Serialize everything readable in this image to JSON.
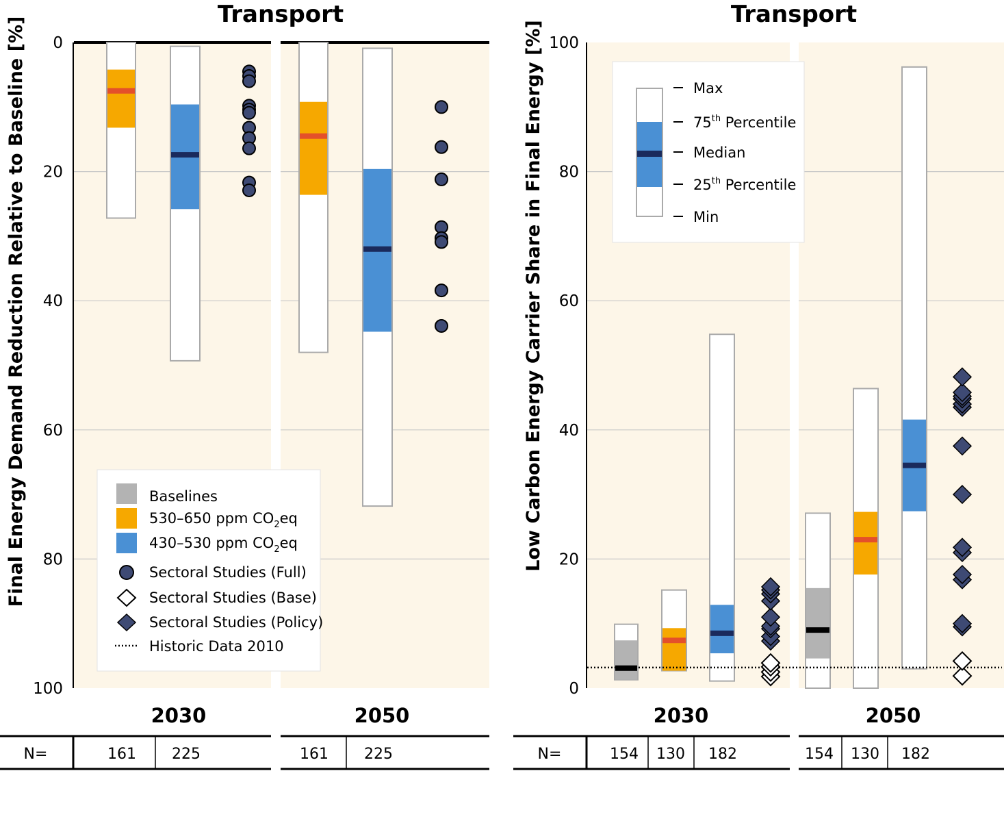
{
  "colors": {
    "panel_bg": "#fdf6e8",
    "white_box": "#ffffff",
    "box_border": "#aaaaaa",
    "baseline": "#b3b3b3",
    "orange": "#f6a800",
    "blue": "#4a90d4",
    "median_orange": "#e4502a",
    "median_blue": "#1a2a5c",
    "median_base": "#000000",
    "marker": "#3e4a74",
    "grid": "#c8c8c8"
  },
  "legend": {
    "baselines": "Baselines",
    "orange_pre": "530–650 ppm CO",
    "orange_sub": "2",
    "orange_post": "eq",
    "blue_pre": "430–530 ppm CO",
    "blue_sub": "2",
    "blue_post": "eq",
    "full": "Sectoral Studies (Full)",
    "base": "Sectoral Studies (Base)",
    "policy": "Sectoral Studies (Policy)",
    "historic": "Historic Data 2010"
  },
  "key_legend": {
    "max": "Max",
    "p75_pre": "75",
    "p75_sup": "th",
    "p75_post": " Percentile",
    "median": "Median",
    "p25_pre": "25",
    "p25_sup": "th",
    "p25_post": " Percentile",
    "min": "Min"
  },
  "n_label": "N=",
  "chart_data": [
    {
      "type": "box",
      "title": "Transport",
      "ylabel": "Final Energy Demand Reduction Relative to Baseline [%]",
      "y_inverted": true,
      "ylim": [
        0,
        100
      ],
      "yticks": [
        "0",
        "20",
        "40",
        "60",
        "80",
        "100"
      ],
      "grid": true,
      "legend_position": "bottom-left",
      "groups": [
        {
          "year": "2030",
          "n": [
            "161",
            "225"
          ],
          "boxes": [
            {
              "category": "530–650 ppm CO2eq",
              "color": "orange",
              "min": 0,
              "p25": 4.2,
              "median": 7.5,
              "p75": 13.2,
              "max": 27.2
            },
            {
              "category": "430–530 ppm CO2eq",
              "color": "blue",
              "min": 0.6,
              "p25": 9.6,
              "median": 17.4,
              "p75": 25.8,
              "max": 49.3
            }
          ],
          "sectoral_full": [
            4.5,
            5.2,
            6.0,
            9.8,
            10.4,
            10.9,
            13.2,
            14.8,
            16.4,
            21.7,
            22.9
          ]
        },
        {
          "year": "2050",
          "n": [
            "161",
            "225"
          ],
          "boxes": [
            {
              "category": "530–650 ppm CO2eq",
              "color": "orange",
              "min": 0,
              "p25": 9.2,
              "median": 14.5,
              "p75": 23.6,
              "max": 48.0
            },
            {
              "category": "430–530 ppm CO2eq",
              "color": "blue",
              "min": 0.9,
              "p25": 19.6,
              "median": 32.0,
              "p75": 44.8,
              "max": 71.8
            }
          ],
          "sectoral_full": [
            10.0,
            16.2,
            21.2,
            28.6,
            30.3,
            30.9,
            38.4,
            43.9
          ]
        }
      ]
    },
    {
      "type": "box",
      "title": "Transport",
      "ylabel": "Low Carbon Energy Carrier Share in Final Energy [%]",
      "y_inverted": false,
      "ylim": [
        0,
        100
      ],
      "yticks": [
        "0",
        "20",
        "40",
        "60",
        "80",
        "100"
      ],
      "grid": true,
      "historic_2010": 3.2,
      "legend_position": "top-left",
      "groups": [
        {
          "year": "2030",
          "n": [
            "154",
            "130",
            "182"
          ],
          "boxes": [
            {
              "category": "Baselines",
              "color": "baseline",
              "min": 1.3,
              "p25": 1.3,
              "median": 3.1,
              "p75": 7.4,
              "max": 9.9
            },
            {
              "category": "530–650 ppm CO2eq",
              "color": "orange",
              "min": 2.7,
              "p25": 2.7,
              "median": 7.4,
              "p75": 9.3,
              "max": 15.2
            },
            {
              "category": "430–530 ppm CO2eq",
              "color": "blue",
              "min": 1.1,
              "p25": 5.4,
              "median": 8.5,
              "p75": 12.9,
              "max": 54.8
            }
          ],
          "sectoral_policy": [
            7.3,
            8.0,
            9.2,
            9.6,
            11.0,
            13.5,
            14.6,
            15.2,
            15.7
          ],
          "sectoral_base": [
            1.8,
            2.5,
            3.3,
            3.9
          ]
        },
        {
          "year": "2050",
          "n": [
            "154",
            "130",
            "182"
          ],
          "boxes": [
            {
              "category": "Baselines",
              "color": "baseline",
              "min": 0,
              "p25": 4.6,
              "median": 9.0,
              "p75": 15.5,
              "max": 27.1
            },
            {
              "category": "530–650 ppm CO2eq",
              "color": "orange",
              "min": 0,
              "p25": 17.6,
              "median": 23.0,
              "p75": 27.3,
              "max": 46.4
            },
            {
              "category": "430–530 ppm CO2eq",
              "color": "blue",
              "min": 3.0,
              "p25": 27.4,
              "median": 34.5,
              "p75": 41.6,
              "max": 96.2
            }
          ],
          "sectoral_policy": [
            9.5,
            10.0,
            16.8,
            17.6,
            21.0,
            21.8,
            30.0,
            37.5,
            43.5,
            44.0,
            44.8,
            45.2,
            45.8,
            48.2
          ],
          "sectoral_base": [
            1.9,
            4.2
          ]
        }
      ]
    }
  ]
}
